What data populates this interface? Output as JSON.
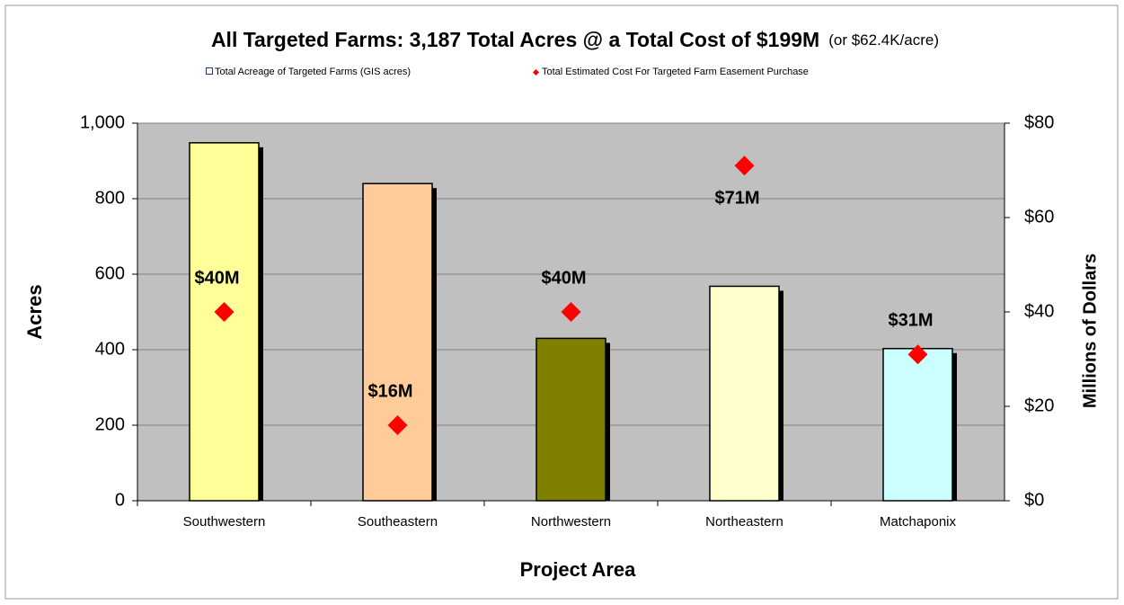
{
  "chart_data": {
    "type": "bar",
    "title": "All  Targeted Farms: 3,187  Total Acres @ a Total Cost of $199M",
    "subtitle": "(or $62.4K/acre)",
    "x_label": "Project Area",
    "y_label": "Acres",
    "y2_label": "Millions of Dollars",
    "categories": [
      "Southwestern",
      "Southeastern",
      "Northwestern",
      "Northeastern",
      "Matchaponix"
    ],
    "series": [
      {
        "name": "Total Acreage of Targeted Farms (GIS acres)",
        "colors": [
          "#ffff99",
          "#ffcc99",
          "#808000",
          "#ffffcc",
          "#ccffff"
        ],
        "values": [
          948,
          840,
          430,
          568,
          403
        ]
      },
      {
        "name": "Total Estimated Cost For Targeted Farm Easement Purchase",
        "color": "#ff0000",
        "axis": "y2",
        "values": [
          40,
          16,
          40,
          71,
          31
        ],
        "value_labels": [
          "$40M",
          "$16M",
          "$40M",
          "$71M",
          "$31M"
        ]
      }
    ],
    "ylim": [
      0,
      1000
    ],
    "yticks": [
      0,
      200,
      400,
      600,
      800,
      {
        "value": 1000,
        "label": "1,000"
      }
    ],
    "y2lim": [
      0,
      80
    ],
    "y2ticks": [
      {
        "value": 0,
        "label": "$0"
      },
      {
        "value": 20,
        "label": "$20"
      },
      {
        "value": 40,
        "label": "$40"
      },
      {
        "value": 60,
        "label": "$60"
      },
      {
        "value": 80,
        "label": "$80"
      }
    ],
    "grid": true
  }
}
